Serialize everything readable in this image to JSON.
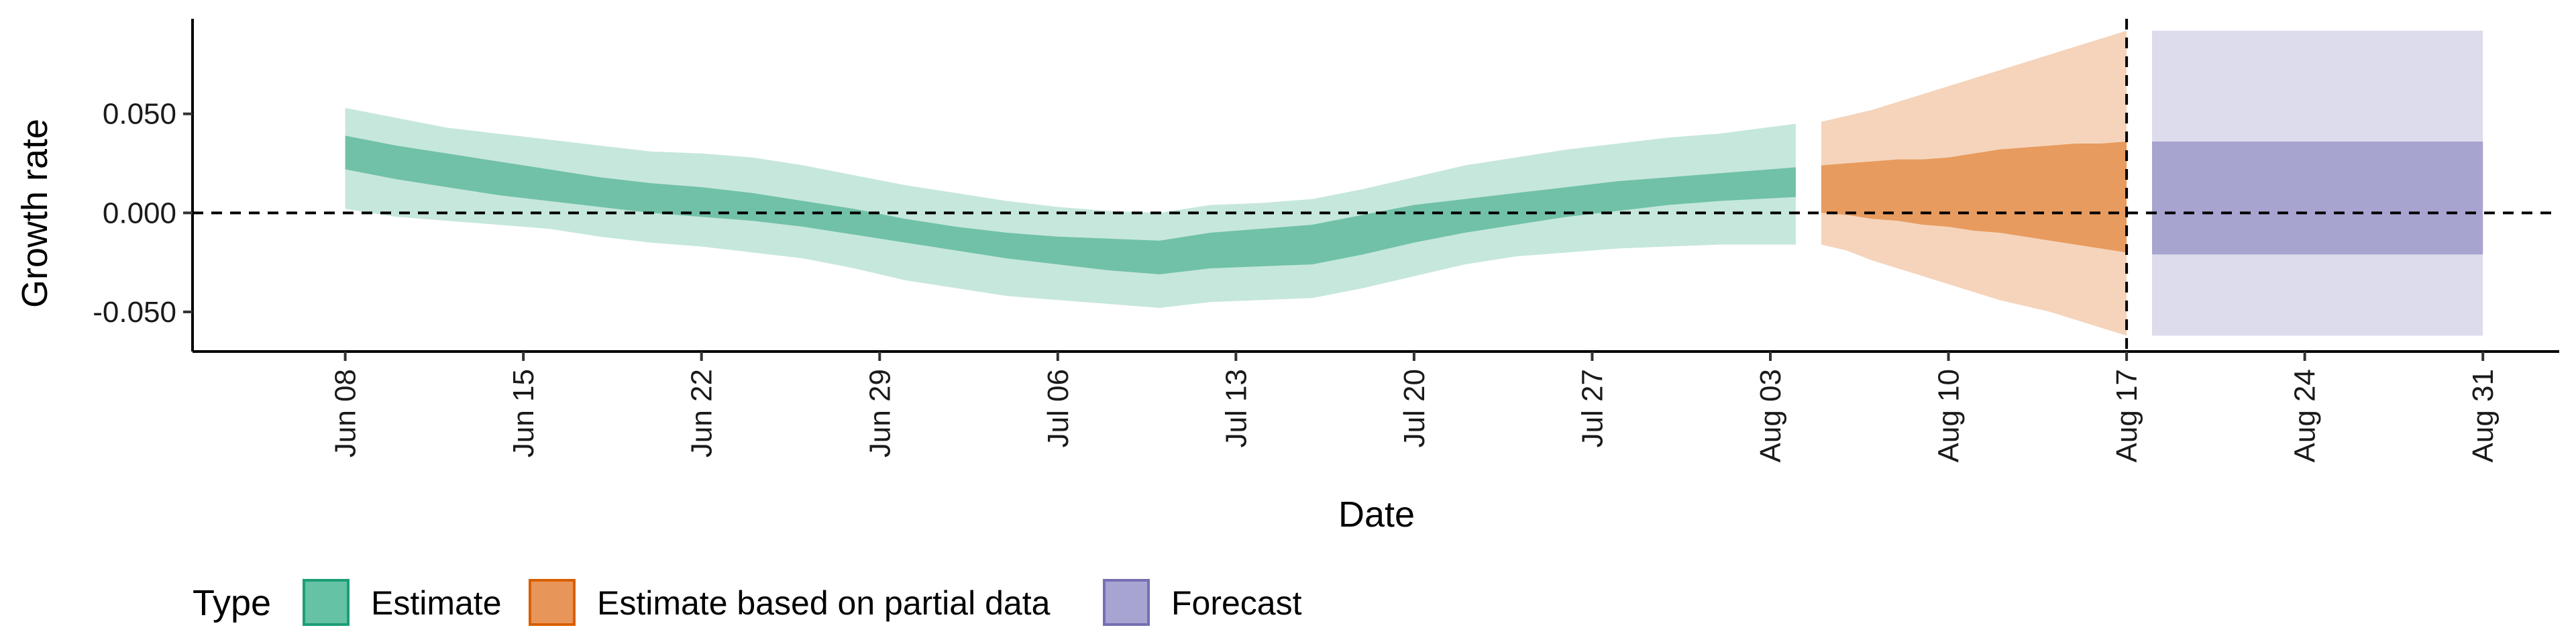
{
  "chart_data": {
    "type": "area",
    "xlabel": "Date",
    "ylabel": "Growth rate",
    "ylim": [
      -0.07,
      0.098
    ],
    "xlim": [
      "2020-06-02",
      "2020-09-03"
    ],
    "x_ticks": [
      {
        "date": "2020-06-08",
        "label": "Jun 08"
      },
      {
        "date": "2020-06-15",
        "label": "Jun 15"
      },
      {
        "date": "2020-06-22",
        "label": "Jun 22"
      },
      {
        "date": "2020-06-29",
        "label": "Jun 29"
      },
      {
        "date": "2020-07-06",
        "label": "Jul 06"
      },
      {
        "date": "2020-07-13",
        "label": "Jul 13"
      },
      {
        "date": "2020-07-20",
        "label": "Jul 20"
      },
      {
        "date": "2020-07-27",
        "label": "Jul 27"
      },
      {
        "date": "2020-08-03",
        "label": "Aug 03"
      },
      {
        "date": "2020-08-10",
        "label": "Aug 10"
      },
      {
        "date": "2020-08-17",
        "label": "Aug 17"
      },
      {
        "date": "2020-08-24",
        "label": "Aug 24"
      },
      {
        "date": "2020-08-31",
        "label": "Aug 31"
      }
    ],
    "y_ticks": [
      {
        "value": -0.05,
        "label": "-0.050"
      },
      {
        "value": 0.0,
        "label": "0.000"
      },
      {
        "value": 0.05,
        "label": "0.050"
      }
    ],
    "reference_lines": {
      "horizontal_y": 0.0,
      "vertical_date": "2020-08-17"
    },
    "grid": false,
    "legend": {
      "title": "Type",
      "placement": "bottom-left",
      "entries": [
        {
          "label": "Estimate",
          "color": "#66c2a5",
          "border": "#1b9e77"
        },
        {
          "label": "Estimate based on partial data",
          "color": "#e8955a",
          "border": "#d95f02"
        },
        {
          "label": "Forecast",
          "color": "#a8a4d2",
          "border": "#7570b3"
        }
      ]
    },
    "series": [
      {
        "name": "Estimate",
        "color_inner": "#70c1a7",
        "color_outer": "#c6e7dc",
        "x": [
          "2020-06-08",
          "2020-06-10",
          "2020-06-12",
          "2020-06-14",
          "2020-06-16",
          "2020-06-18",
          "2020-06-20",
          "2020-06-22",
          "2020-06-24",
          "2020-06-26",
          "2020-06-28",
          "2020-06-30",
          "2020-07-02",
          "2020-07-04",
          "2020-07-06",
          "2020-07-08",
          "2020-07-10",
          "2020-07-12",
          "2020-07-14",
          "2020-07-16",
          "2020-07-18",
          "2020-07-20",
          "2020-07-22",
          "2020-07-24",
          "2020-07-26",
          "2020-07-28",
          "2020-07-30",
          "2020-08-01",
          "2020-08-04"
        ],
        "lower90": [
          0.002,
          -0.002,
          -0.004,
          -0.006,
          -0.008,
          -0.012,
          -0.015,
          -0.017,
          -0.02,
          -0.023,
          -0.028,
          -0.034,
          -0.038,
          -0.042,
          -0.044,
          -0.046,
          -0.048,
          -0.045,
          -0.044,
          -0.043,
          -0.038,
          -0.032,
          -0.026,
          -0.022,
          -0.02,
          -0.018,
          -0.017,
          -0.016,
          -0.016
        ],
        "lower50": [
          0.022,
          0.017,
          0.013,
          0.009,
          0.006,
          0.003,
          0.0,
          -0.002,
          -0.004,
          -0.007,
          -0.011,
          -0.015,
          -0.019,
          -0.023,
          -0.026,
          -0.029,
          -0.031,
          -0.028,
          -0.027,
          -0.026,
          -0.021,
          -0.015,
          -0.01,
          -0.006,
          -0.002,
          0.001,
          0.004,
          0.006,
          0.008
        ],
        "upper50": [
          0.039,
          0.034,
          0.03,
          0.026,
          0.022,
          0.018,
          0.015,
          0.013,
          0.01,
          0.006,
          0.002,
          -0.003,
          -0.007,
          -0.01,
          -0.012,
          -0.013,
          -0.014,
          -0.01,
          -0.008,
          -0.006,
          -0.001,
          0.004,
          0.007,
          0.01,
          0.013,
          0.016,
          0.018,
          0.02,
          0.023
        ],
        "upper90": [
          0.053,
          0.048,
          0.043,
          0.04,
          0.037,
          0.034,
          0.031,
          0.03,
          0.028,
          0.024,
          0.019,
          0.014,
          0.01,
          0.006,
          0.003,
          0.001,
          0.0,
          0.004,
          0.005,
          0.007,
          0.012,
          0.018,
          0.024,
          0.028,
          0.032,
          0.035,
          0.038,
          0.04,
          0.045
        ]
      },
      {
        "name": "Estimate based on partial data",
        "color_inner": "#e89b5e",
        "color_outer": "#f5d4bb",
        "x": [
          "2020-08-05",
          "2020-08-06",
          "2020-08-07",
          "2020-08-08",
          "2020-08-09",
          "2020-08-10",
          "2020-08-11",
          "2020-08-12",
          "2020-08-13",
          "2020-08-14",
          "2020-08-15",
          "2020-08-16",
          "2020-08-17"
        ],
        "lower90": [
          -0.016,
          -0.019,
          -0.024,
          -0.028,
          -0.032,
          -0.036,
          -0.04,
          -0.044,
          -0.047,
          -0.05,
          -0.054,
          -0.058,
          -0.062
        ],
        "lower50": [
          0.0,
          -0.001,
          -0.003,
          -0.004,
          -0.006,
          -0.007,
          -0.009,
          -0.01,
          -0.012,
          -0.014,
          -0.016,
          -0.018,
          -0.02
        ],
        "upper50": [
          0.024,
          0.025,
          0.026,
          0.027,
          0.027,
          0.028,
          0.03,
          0.032,
          0.033,
          0.034,
          0.035,
          0.035,
          0.036
        ],
        "upper90": [
          0.046,
          0.049,
          0.052,
          0.056,
          0.06,
          0.064,
          0.068,
          0.072,
          0.076,
          0.08,
          0.084,
          0.088,
          0.092
        ]
      },
      {
        "name": "Forecast",
        "color_inner": "#a8a4d0",
        "color_outer": "#dddced",
        "x": [
          "2020-08-18",
          "2020-08-31"
        ],
        "lower90": [
          -0.062,
          -0.062
        ],
        "lower50": [
          -0.021,
          -0.021
        ],
        "upper50": [
          0.036,
          0.036
        ],
        "upper90": [
          0.092,
          0.092
        ]
      }
    ]
  }
}
